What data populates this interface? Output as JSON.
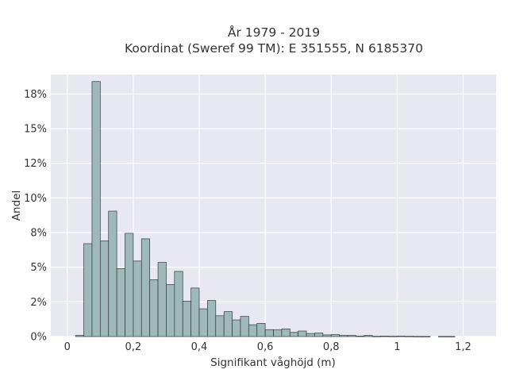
{
  "chart_data": {
    "type": "bar",
    "title_lines": [
      "År 1979 - 2019",
      "Koordinat (Sweref 99 TM): E 351555, N 6185370"
    ],
    "xlabel": "Signifikant våghöjd (m)",
    "ylabel": "Andel",
    "bin_width": 0.025,
    "x_start": 0.0,
    "values": [
      0,
      0.08,
      6.7,
      18.4,
      6.9,
      9.05,
      4.9,
      7.45,
      5.45,
      7.05,
      4.1,
      5.35,
      3.75,
      4.7,
      2.55,
      3.5,
      2.0,
      2.6,
      1.5,
      1.8,
      1.2,
      1.45,
      0.85,
      0.95,
      0.5,
      0.48,
      0.55,
      0.3,
      0.4,
      0.22,
      0.25,
      0.12,
      0.14,
      0.08,
      0.08,
      0.03,
      0.08,
      0.02,
      0.03,
      0.02,
      0.03,
      0.02,
      0.01,
      0.01,
      0.0,
      0.01,
      0.01,
      0.0
    ],
    "xlim": [
      -0.05,
      1.3
    ],
    "ylim": [
      0,
      18.9
    ],
    "x_ticks": [
      0,
      0.2,
      0.4,
      0.6,
      0.8,
      1,
      1.2
    ],
    "x_tick_labels": [
      "0",
      "0,2",
      "0,4",
      "0,6",
      "0,8",
      "1",
      "1,2"
    ],
    "y_ticks": [
      0,
      2.5,
      5,
      7.5,
      10,
      12.5,
      15,
      17.5
    ],
    "y_tick_labels": [
      "0%",
      "2%",
      "5%",
      "8%",
      "10%",
      "12%",
      "15%",
      "18%"
    ],
    "grid": true,
    "colors": {
      "bar_fill": "#9fb8b8",
      "bar_stroke": "#2f3b3b",
      "plot_bg": "#e8e8f0",
      "grid": "#ffffff",
      "text": "#333333"
    }
  }
}
